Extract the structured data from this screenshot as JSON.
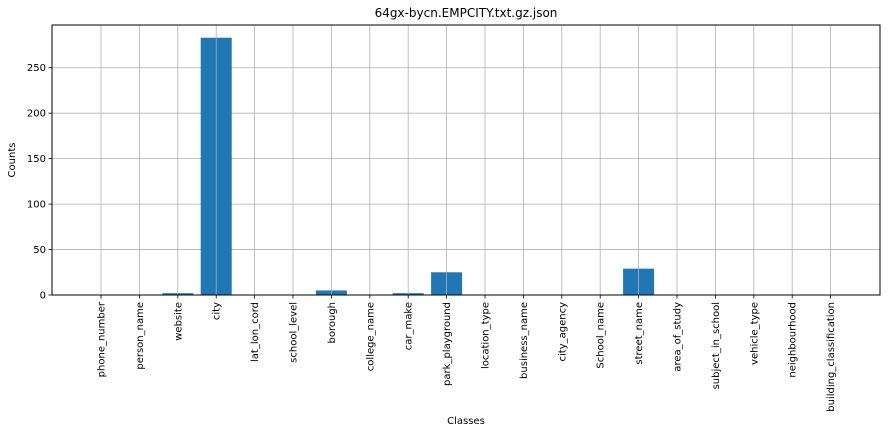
{
  "chart_data": {
    "type": "bar",
    "title": "64gx-bycn.EMPCITY.txt.gz.json",
    "xlabel": "Classes",
    "ylabel": "Counts",
    "categories": [
      "phone_number",
      "person_name",
      "website",
      "city",
      "lat_lon_cord",
      "school_level",
      "borough",
      "college_name",
      "car_make",
      "park_playground",
      "location_type",
      "business_name",
      "city_agency",
      "School_name",
      "street_name",
      "area_of_study",
      "subject_in_school",
      "vehicle_type",
      "neighbourhood",
      "building_classification"
    ],
    "values": [
      0,
      0,
      2,
      283,
      0,
      0,
      5,
      0,
      2,
      25,
      0,
      0,
      0,
      0,
      29,
      0,
      0,
      0,
      0,
      0
    ],
    "ylim": [
      0,
      297
    ],
    "yticks": [
      0,
      50,
      100,
      150,
      200,
      250
    ],
    "grid": true,
    "bar_color": "#1f77b4",
    "grid_color": "#b0b0b0"
  }
}
